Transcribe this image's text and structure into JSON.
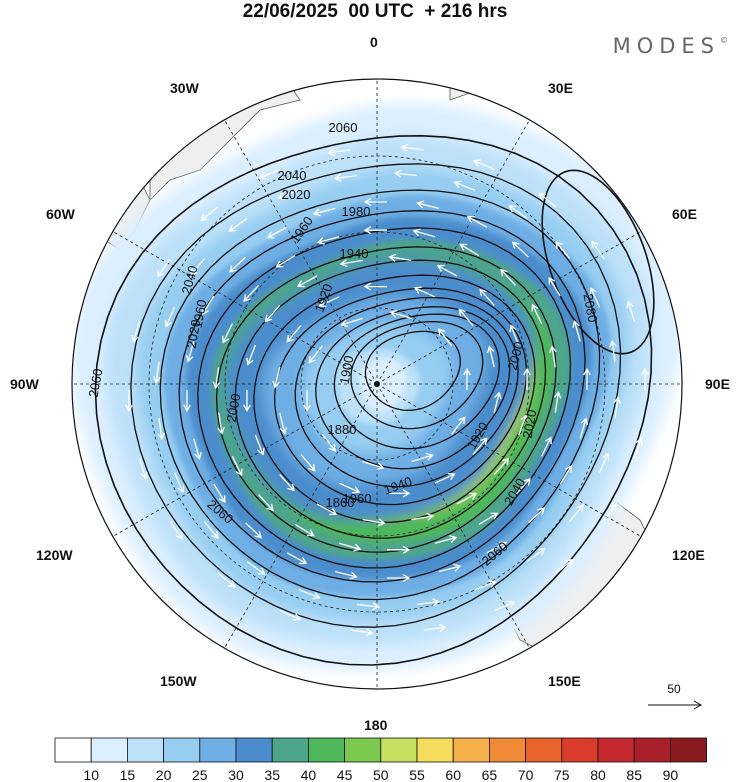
{
  "title": "22/06/2025  00 UTC  + 216 hrs",
  "brand": "MODES",
  "brand_mark": "©",
  "longitude_labels": [
    "0",
    "30E",
    "60E",
    "90E",
    "120E",
    "150E",
    "180",
    "150W",
    "120W",
    "90W",
    "60W",
    "30W"
  ],
  "contour_labels": [
    "2060",
    "2040",
    "2020",
    "1980",
    "1960",
    "1940",
    "1920",
    "1900",
    "1880",
    "1860",
    "1960",
    "2000",
    "1920",
    "2020",
    "1940",
    "1960",
    "2040",
    "2020",
    "2000",
    "2040",
    "2060",
    "2060",
    "2060",
    "2080"
  ],
  "reference_vector_label": "50",
  "colorbar": {
    "ticks": [
      "10",
      "15",
      "20",
      "25",
      "30",
      "35",
      "40",
      "45",
      "50",
      "55",
      "60",
      "65",
      "70",
      "75",
      "80",
      "85",
      "90"
    ],
    "colors": [
      "#ffffff",
      "#dcefff",
      "#bde1f9",
      "#96cdf1",
      "#6eaee4",
      "#4b8dcc",
      "#4da58a",
      "#4fb85a",
      "#7ac84d",
      "#c7df5e",
      "#f6dc5c",
      "#f4b04a",
      "#f08a37",
      "#e8632c",
      "#d93c2b",
      "#c42a2f",
      "#a9202b",
      "#8b1a1f"
    ]
  },
  "colors": {
    "land": "#efefef",
    "coast": "#555555",
    "contour": "#111111",
    "wind_arrow": "#ffffff"
  }
}
